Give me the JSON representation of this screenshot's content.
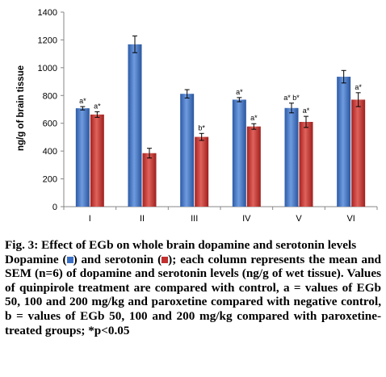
{
  "chart_data": {
    "type": "bar",
    "ylabel": "ng/g of brain tissue",
    "ylim": [
      0,
      1400
    ],
    "yticks": [
      "0",
      "200",
      "400",
      "600",
      "800",
      "1000",
      "1200",
      "1400"
    ],
    "categories": [
      "I",
      "II",
      "III",
      "IV",
      "V",
      "VI"
    ],
    "grid": false,
    "legend": "none",
    "series": [
      {
        "color": "#3a6fc4",
        "values": [
          708,
          1168,
          812,
          770,
          710,
          935
        ],
        "errors": [
          12,
          60,
          30,
          15,
          35,
          45
        ],
        "annotations": [
          "a*",
          "",
          "",
          "a*",
          "a* b*",
          ""
        ]
      },
      {
        "color": "#c0312f",
        "values": [
          663,
          385,
          502,
          577,
          610,
          770
        ],
        "errors": [
          20,
          35,
          25,
          20,
          40,
          50
        ],
        "annotations": [
          "a*",
          "",
          "b*",
          "a*",
          "a*",
          "a*"
        ]
      }
    ]
  },
  "caption": {
    "title": "Fig. 3: Effect of EGb on whole brain dopamine and serotonin levels",
    "desc_dopamine": "Dopamine (",
    "desc_and": ") and serotonin (",
    "desc_rest": "); each column represents the mean and SEM (n=6) of dopamine and serotonin levels (ng/g of wet tissue). Values of quinpirole treatment are compared with control, a = values of EGb 50, 100 and 200 mg/kg and paroxetine compared with negative control, b = values of EGb 50, 100 and 200 mg/kg compared with paroxetine-treated groups; *p<0.05"
  }
}
